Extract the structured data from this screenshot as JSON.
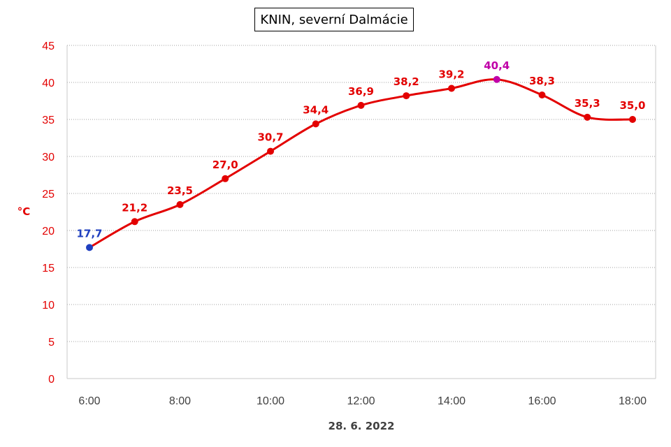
{
  "chart_data": {
    "type": "line",
    "title": "KNIN, severní Dalmácie",
    "xlabel": "28. 6. 2022",
    "ylabel": "°C",
    "x": [
      "6:00",
      "7:00",
      "8:00",
      "9:00",
      "10:00",
      "11:00",
      "12:00",
      "13:00",
      "14:00",
      "15:00",
      "16:00",
      "17:00",
      "18:00"
    ],
    "x_tick_labels": [
      "6:00",
      "8:00",
      "10:00",
      "12:00",
      "14:00",
      "16:00",
      "18:00"
    ],
    "y_ticks": [
      "0",
      "5",
      "10",
      "15",
      "20",
      "25",
      "30",
      "35",
      "40",
      "45"
    ],
    "ylim": [
      0,
      45
    ],
    "grid": "horizontal dotted",
    "series": [
      {
        "values": [
          17.7,
          21.2,
          23.5,
          27.0,
          30.7,
          34.4,
          36.9,
          38.2,
          39.2,
          40.4,
          38.3,
          35.3,
          35.0
        ],
        "labels": [
          "17,7",
          "21,2",
          "23,5",
          "27,0",
          "30,7",
          "34,4",
          "36,9",
          "38,2",
          "39,2",
          "40,4",
          "38,3",
          "35,3",
          "35,0"
        ]
      }
    ],
    "colors": {
      "line": "#e30000",
      "min_marker": "#1f3fbf",
      "max_marker": "#c000a8",
      "axis_text": "#e30000",
      "grid": "#a0a0a0"
    }
  }
}
